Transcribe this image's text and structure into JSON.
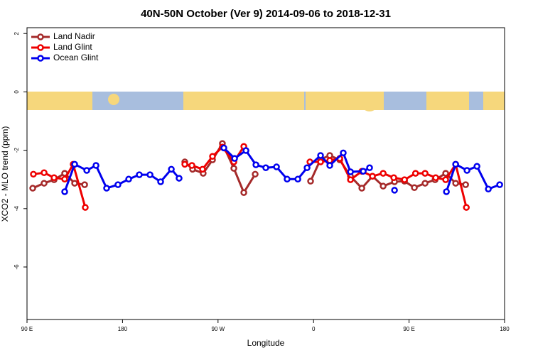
{
  "chart_data": {
    "type": "line",
    "title": "40N-50N October (Ver 9)   2014-09-06 to 2018-12-31",
    "xlabel": "Longitude",
    "ylabel": "XCO2 - MLO trend (ppm)",
    "xlim": [
      90,
      540
    ],
    "ylim": [
      -7.8,
      2.2
    ],
    "xticks": [
      {
        "value": 90,
        "label": "90 E"
      },
      180,
      {
        "value": 270,
        "label": "90 W"
      },
      {
        "value": 360,
        "label": "0"
      },
      {
        "value": 450,
        "label": "90 E"
      },
      {
        "value": 540,
        "label": "180"
      }
    ],
    "yticks": [
      -6,
      -4,
      -2,
      0,
      2
    ],
    "legend": "top-left",
    "series": [
      {
        "name": "Land Nadir",
        "color": "#a52a2a",
        "x": [
          95.4,
          106.1,
          115.5,
          125.5,
          134.9,
          144.3,
          null,
          238.7,
          246,
          256,
          264.8,
          274.1,
          284.9,
          294.3,
          305,
          null,
          357.2,
          366.6,
          375.3,
          384.7,
          394.8,
          405.5,
          415.5,
          425.6,
          436.3,
          445.7,
          455,
          465.1,
          474.5,
          484.5,
          493.9,
          503.3
        ],
        "values": [
          -3.3,
          -3.13,
          -3.01,
          -2.79,
          -3.13,
          -3.18,
          null,
          -2.4,
          -2.65,
          -2.79,
          -2.33,
          -1.77,
          -2.62,
          -3.45,
          -2.82,
          null,
          -3.06,
          -2.31,
          -2.18,
          -2.33,
          -2.89,
          -3.3,
          -2.89,
          -3.23,
          -3.08,
          -3.06,
          -3.28,
          -3.13,
          -3.01,
          -2.79,
          -3.13,
          -3.18
        ]
      },
      {
        "name": "Land Glint",
        "color": "#ee0000",
        "x": [
          96,
          106.1,
          115.5,
          125.5,
          133.5,
          144.9,
          null,
          238.7,
          245.4,
          255.4,
          264.8,
          274.1,
          284.9,
          294.3,
          null,
          356.6,
          366.6,
          375.3,
          384.7,
          394.8,
          405.5,
          415.5,
          425.6,
          435.6,
          445.7,
          456.1,
          465.1,
          475.1,
          484.5,
          493.9,
          504
        ],
        "values": [
          -2.82,
          -2.77,
          -2.94,
          -2.99,
          -2.48,
          -3.96,
          null,
          -2.48,
          -2.52,
          -2.65,
          -2.21,
          -1.89,
          -2.4,
          -1.87,
          null,
          -2.4,
          -2.4,
          -2.35,
          -2.28,
          -3.01,
          -2.72,
          -2.89,
          -2.79,
          -2.94,
          -3.01,
          -2.79,
          -2.79,
          -2.94,
          -3.01,
          -2.48,
          -3.96
        ]
      },
      {
        "name": "Ocean Glint",
        "color": "#0000ee",
        "x": [
          125.5,
          134.9,
          146.3,
          155,
          165,
          175.7,
          185.8,
          195.8,
          205.9,
          215.9,
          226,
          233.3,
          null,
          275.5,
          285.6,
          296.3,
          305.7,
          315,
          325.1,
          335.1,
          345.2,
          353.9,
          366.6,
          375.3,
          388,
          394.8,
          406.8,
          412.8,
          null,
          436.3,
          null,
          485.2,
          493.9,
          504.6,
          514,
          524.7,
          535.4
        ],
        "values": [
          -3.42,
          -2.48,
          -2.69,
          -2.52,
          -3.3,
          -3.18,
          -2.99,
          -2.84,
          -2.84,
          -3.08,
          -2.65,
          -2.96,
          null,
          -1.92,
          -2.28,
          -2.01,
          -2.5,
          -2.6,
          -2.57,
          -2.99,
          -2.99,
          -2.6,
          -2.18,
          -2.52,
          -2.09,
          -2.74,
          -2.72,
          -2.6,
          null,
          -3.37,
          null,
          -3.42,
          -2.48,
          -2.69,
          -2.55,
          -3.33,
          -3.18
        ]
      }
    ]
  }
}
